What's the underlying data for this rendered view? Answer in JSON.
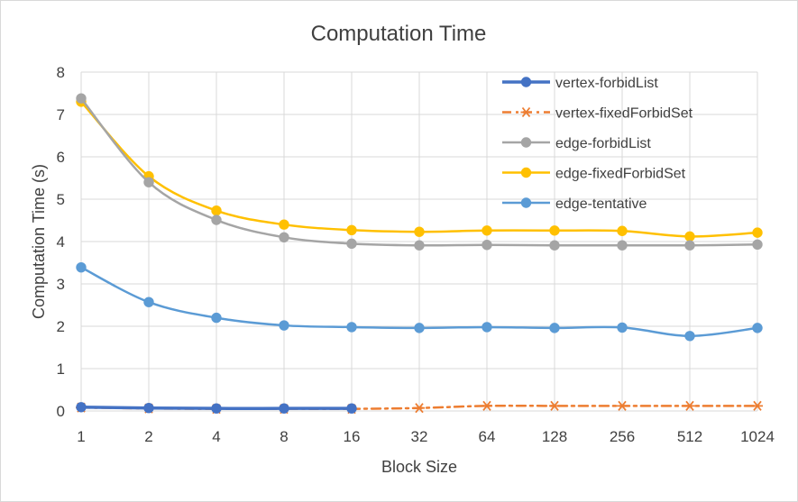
{
  "chart_data": {
    "type": "line",
    "title": "Computation Time",
    "xlabel": "Block Size",
    "ylabel": "Computation Time (s)",
    "categories": [
      "1",
      "2",
      "4",
      "8",
      "16",
      "32",
      "64",
      "128",
      "256",
      "512",
      "1024"
    ],
    "ylim": [
      0,
      8
    ],
    "yticks": [
      0,
      1,
      2,
      3,
      4,
      5,
      6,
      7,
      8
    ],
    "grid": true,
    "legend_position": "top-right",
    "series": [
      {
        "name": "vertex-forbidList",
        "color": "#4472c4",
        "marker": "circle",
        "dash": "solid",
        "values": [
          0.09,
          0.07,
          0.06,
          0.06,
          0.06,
          null,
          null,
          null,
          null,
          null,
          null
        ]
      },
      {
        "name": "vertex-fixedForbidSet",
        "color": "#ed7d31",
        "marker": "star",
        "dash": "dashdot",
        "values": [
          0.08,
          0.06,
          0.05,
          0.05,
          0.05,
          0.07,
          0.12,
          0.12,
          0.12,
          0.12,
          0.12
        ]
      },
      {
        "name": "edge-forbidList",
        "color": "#a5a5a5",
        "marker": "circle",
        "dash": "solid",
        "values": [
          7.38,
          5.4,
          4.51,
          4.1,
          3.95,
          3.91,
          3.92,
          3.91,
          3.91,
          3.91,
          3.93
        ]
      },
      {
        "name": "edge-fixedForbidSet",
        "color": "#ffc000",
        "marker": "circle",
        "dash": "solid",
        "values": [
          7.3,
          5.54,
          4.73,
          4.4,
          4.27,
          4.23,
          4.26,
          4.26,
          4.25,
          4.12,
          4.21
        ]
      },
      {
        "name": "edge-tentative",
        "color": "#5b9bd5",
        "marker": "circle",
        "dash": "solid",
        "values": [
          3.39,
          2.57,
          2.2,
          2.02,
          1.98,
          1.96,
          1.98,
          1.96,
          1.97,
          1.77,
          1.96
        ]
      }
    ]
  }
}
